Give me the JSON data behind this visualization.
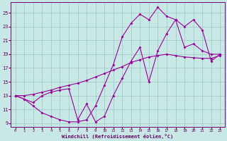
{
  "xlabel": "Windchill (Refroidissement éolien,°C)",
  "bg_color": "#c8e8e6",
  "grid_color": "#a4ccca",
  "line_color": "#990099",
  "xlim": [
    -0.5,
    23.5
  ],
  "ylim": [
    8.5,
    26.5
  ],
  "xticks": [
    0,
    1,
    2,
    3,
    4,
    5,
    6,
    7,
    8,
    9,
    10,
    11,
    12,
    13,
    14,
    15,
    16,
    17,
    18,
    19,
    20,
    21,
    22,
    23
  ],
  "yticks": [
    9,
    11,
    13,
    15,
    17,
    19,
    21,
    23,
    25
  ],
  "curve1_x": [
    0,
    1,
    2,
    3,
    4,
    5,
    6,
    7,
    8,
    9,
    10,
    11,
    12,
    13,
    14,
    15,
    16,
    17,
    18,
    19,
    20,
    21,
    22,
    23
  ],
  "curve1_y": [
    13.0,
    12.5,
    11.5,
    10.5,
    10.0,
    9.5,
    9.2,
    9.2,
    9.5,
    11.5,
    14.5,
    17.5,
    21.5,
    23.5,
    24.8,
    24.0,
    25.8,
    24.5,
    24.0,
    20.0,
    20.5,
    19.5,
    19.0,
    19.0
  ],
  "curve2_x": [
    0,
    2,
    3,
    4,
    5,
    6,
    7,
    8,
    9,
    10,
    11,
    12,
    13,
    14,
    15,
    16,
    17,
    18,
    19,
    20,
    21,
    22,
    23
  ],
  "curve2_y": [
    13.0,
    12.0,
    13.0,
    13.5,
    13.8,
    14.0,
    9.5,
    11.8,
    9.2,
    10.0,
    13.0,
    15.5,
    18.0,
    20.0,
    15.0,
    19.5,
    22.0,
    24.0,
    23.0,
    24.0,
    22.5,
    18.0,
    19.0
  ],
  "curve3_x": [
    0,
    1,
    2,
    3,
    4,
    5,
    6,
    7,
    8,
    9,
    10,
    11,
    12,
    13,
    14,
    15,
    16,
    17,
    18,
    19,
    20,
    21,
    22,
    23
  ],
  "curve3_y": [
    13.0,
    13.0,
    13.2,
    13.5,
    13.8,
    14.2,
    14.5,
    14.8,
    15.2,
    15.7,
    16.2,
    16.7,
    17.2,
    17.8,
    18.2,
    18.6,
    18.8,
    19.0,
    18.8,
    18.6,
    18.5,
    18.4,
    18.4,
    18.8
  ]
}
